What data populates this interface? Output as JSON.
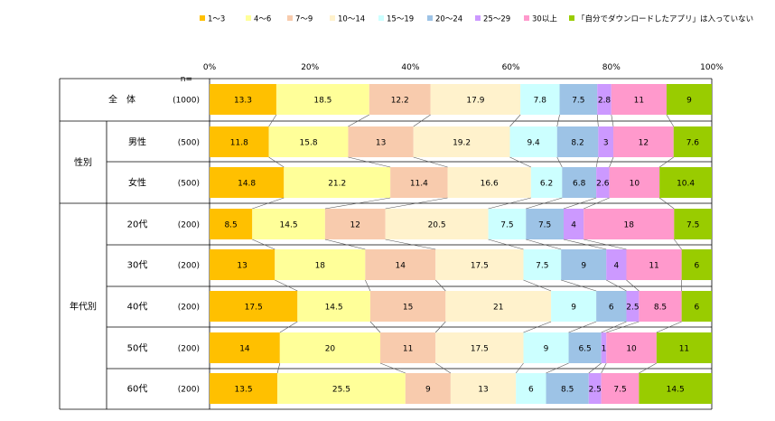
{
  "chart_data": {
    "type": "bar",
    "stacked": "percent",
    "orientation": "horizontal",
    "legend_position": "top",
    "n_header": "n=",
    "x_ticks": [
      "0%",
      "20%",
      "40%",
      "60%",
      "80%",
      "100%"
    ],
    "xlim": [
      0,
      100
    ],
    "series": [
      {
        "name": "1～3",
        "color": "#ffc000"
      },
      {
        "name": "4～6",
        "color": "#ffff99"
      },
      {
        "name": "7～9",
        "color": "#f8cbad"
      },
      {
        "name": "10～14",
        "color": "#fff2cc"
      },
      {
        "name": "15～19",
        "color": "#ccffff"
      },
      {
        "name": "20～24",
        "color": "#9dc3e6"
      },
      {
        "name": "25～29",
        "color": "#cc99ff"
      },
      {
        "name": "30以上",
        "color": "#ff99cc"
      },
      {
        "name": "「自分でダウンロードしたアプリ」は入っていない",
        "color": "#99cc00"
      }
    ],
    "groups": [
      {
        "label": "",
        "rows": [
          0
        ]
      },
      {
        "label": "性別",
        "rows": [
          1,
          2
        ]
      },
      {
        "label": "年代別",
        "rows": [
          3,
          4,
          5,
          6,
          7
        ]
      }
    ],
    "rows": [
      {
        "label": "全　体",
        "n": "(1000)",
        "values": [
          13.3,
          18.5,
          12.2,
          17.9,
          7.8,
          7.5,
          2.8,
          11.0,
          9.0
        ]
      },
      {
        "label": "男性",
        "n": "(500)",
        "values": [
          11.8,
          15.8,
          13.0,
          19.2,
          9.4,
          8.2,
          3.0,
          12.0,
          7.6
        ]
      },
      {
        "label": "女性",
        "n": "(500)",
        "values": [
          14.8,
          21.2,
          11.4,
          16.6,
          6.2,
          6.8,
          2.6,
          10.0,
          10.4
        ]
      },
      {
        "label": "20代",
        "n": "(200)",
        "values": [
          8.5,
          14.5,
          12.0,
          20.5,
          7.5,
          7.5,
          4.0,
          18.0,
          7.5
        ]
      },
      {
        "label": "30代",
        "n": "(200)",
        "values": [
          13.0,
          18.0,
          14.0,
          17.5,
          7.5,
          9.0,
          4.0,
          11.0,
          6.0
        ]
      },
      {
        "label": "40代",
        "n": "(200)",
        "values": [
          17.5,
          14.5,
          15.0,
          21.0,
          9.0,
          6.0,
          2.5,
          8.5,
          6.0
        ]
      },
      {
        "label": "50代",
        "n": "(200)",
        "values": [
          14.0,
          20.0,
          11.0,
          17.5,
          9.0,
          6.5,
          1.0,
          10.0,
          11.0
        ]
      },
      {
        "label": "60代",
        "n": "(200)",
        "values": [
          13.5,
          25.5,
          9.0,
          13.0,
          6.0,
          8.5,
          2.5,
          7.5,
          14.5
        ]
      }
    ]
  }
}
